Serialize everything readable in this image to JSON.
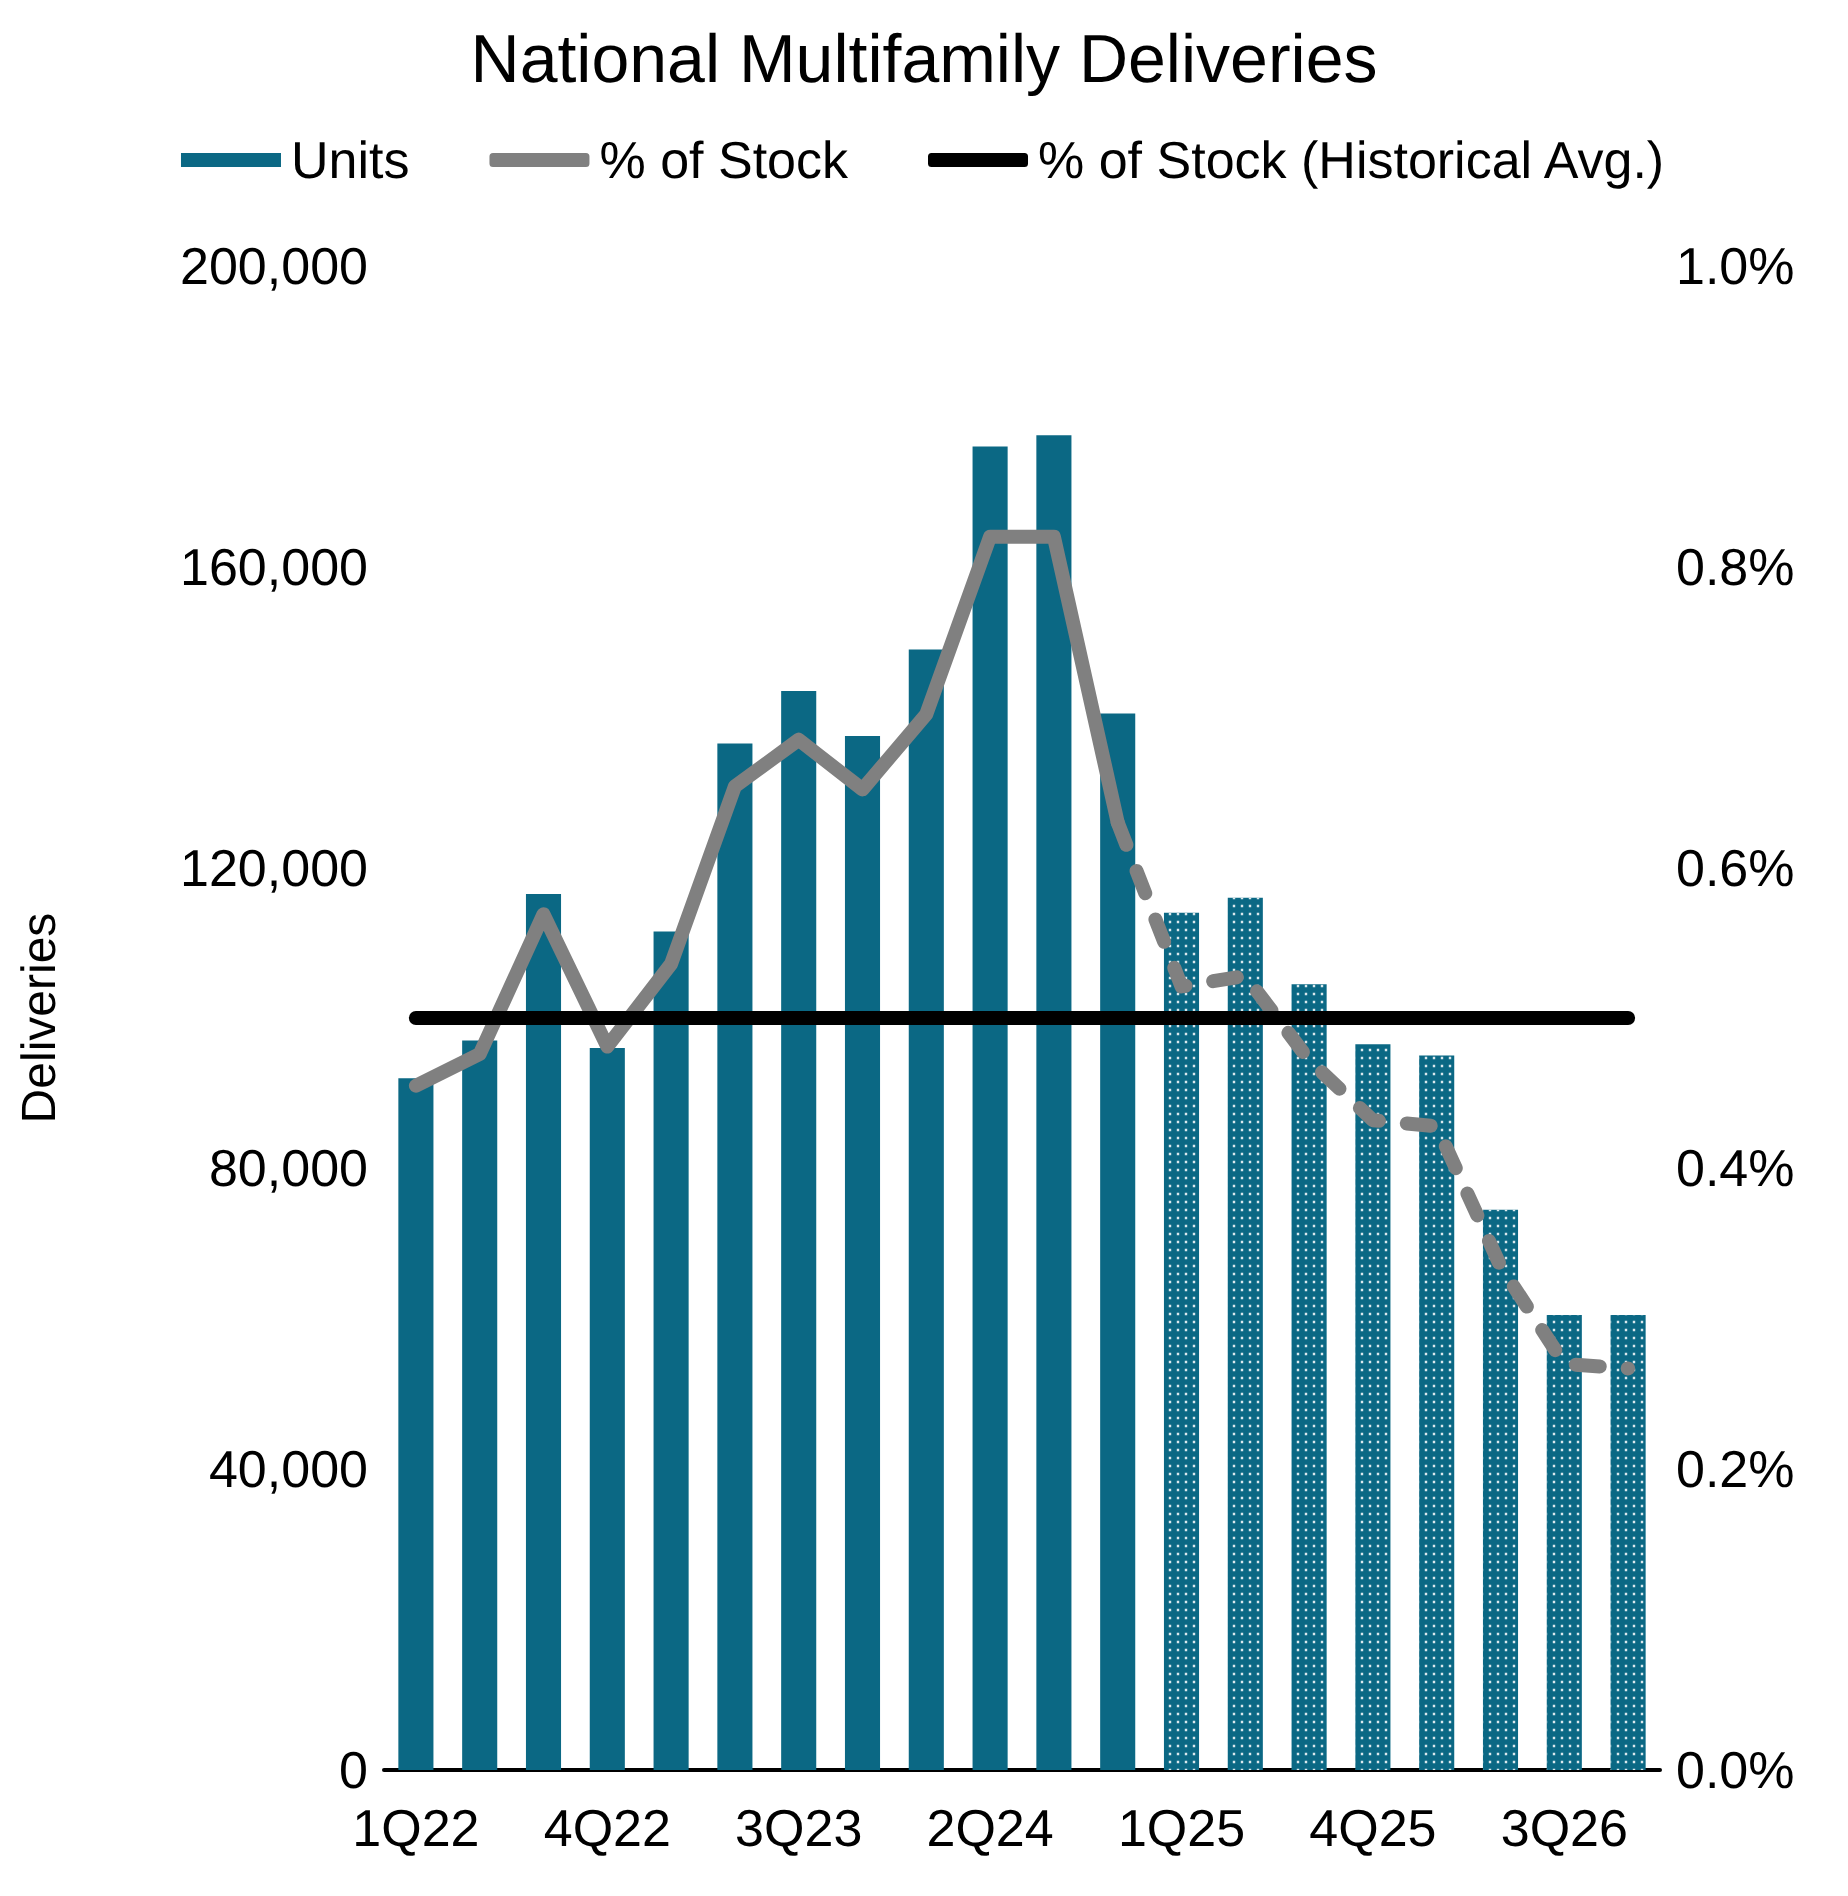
{
  "chart_data": {
    "type": "bar",
    "title": "National Multifamily Deliveries",
    "ylabel": "Deliveries",
    "categories": [
      "1Q22",
      null,
      null,
      "4Q22",
      null,
      null,
      "3Q23",
      null,
      null,
      "2Q24",
      null,
      null,
      "1Q25",
      null,
      null,
      "4Q25",
      null,
      null,
      "3Q26",
      null
    ],
    "series": [
      {
        "name": "Units",
        "color": "#0b6884",
        "values": [
          92000,
          97000,
          116500,
          96000,
          111500,
          136500,
          143500,
          137500,
          149000,
          176000,
          177500,
          140500,
          null,
          null,
          null,
          null,
          null,
          null,
          null,
          null
        ]
      },
      {
        "color": "#0b6884",
        "line_style": "dotted",
        "values": [
          null,
          null,
          null,
          null,
          null,
          null,
          null,
          null,
          null,
          null,
          null,
          null,
          114000,
          116000,
          104500,
          96500,
          95000,
          74500,
          60500,
          60500
        ]
      },
      {
        "name": "% of Stock",
        "type": "line",
        "axis": "y2",
        "color": "#808080",
        "line_style": "solid",
        "values": [
          0.455,
          0.476,
          0.569,
          0.481,
          0.536,
          0.654,
          0.685,
          0.652,
          0.702,
          0.82,
          0.82,
          0.63,
          null,
          null,
          null,
          null,
          null,
          null,
          null,
          null
        ]
      },
      {
        "type": "line",
        "axis": "y2",
        "color": "#808080",
        "line_style": "dashed",
        "values": [
          null,
          null,
          null,
          null,
          null,
          null,
          null,
          null,
          null,
          null,
          null,
          0.63,
          0.521,
          0.528,
          0.472,
          0.432,
          0.428,
          0.335,
          0.27,
          0.267
        ]
      },
      {
        "name": "% of Stock (Historical Avg.)",
        "type": "line",
        "axis": "y2",
        "color": "#000000",
        "line_style": "solid",
        "values": [
          0.5,
          0.5,
          0.5,
          0.5,
          0.5,
          0.5,
          0.5,
          0.5,
          0.5,
          0.5,
          0.5,
          0.5,
          0.5,
          0.5,
          0.5,
          0.5,
          0.5,
          0.5,
          0.5,
          0.5
        ]
      }
    ],
    "ylim": [
      0,
      200000
    ],
    "yticks": [
      {
        "value": 0,
        "label": "0"
      },
      {
        "value": 40000,
        "label": "40,000"
      },
      {
        "value": 80000,
        "label": "80,000"
      },
      {
        "value": 120000,
        "label": "120,000"
      },
      {
        "value": 160000,
        "label": "160,000"
      },
      {
        "value": 200000,
        "label": "200,000"
      }
    ],
    "y2lim": [
      0,
      1
    ],
    "y2ticks": [
      {
        "value": 0,
        "label": "0.0%"
      },
      {
        "value": 0.2,
        "label": "0.2%"
      },
      {
        "value": 0.4,
        "label": "0.4%"
      },
      {
        "value": 0.6,
        "label": "0.6%"
      },
      {
        "value": 0.8,
        "label": "0.8%"
      },
      {
        "value": 1,
        "label": "1.0%"
      }
    ],
    "grid": false,
    "legend": "top",
    "marker": "none"
  }
}
